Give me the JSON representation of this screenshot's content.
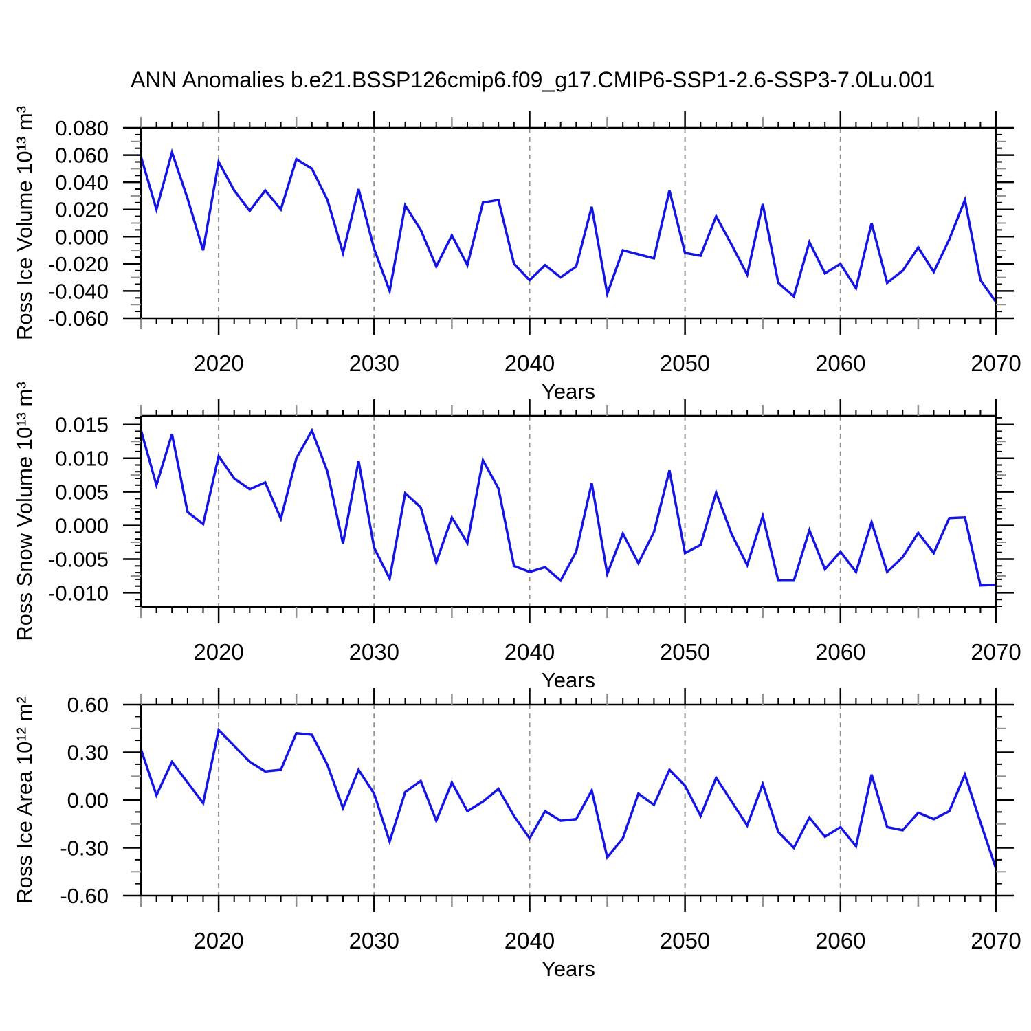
{
  "title": "ANN Anomalies b.e21.BSSP126cmip6.f09_g17.CMIP6-SSP1-2.6-SSP3-7.0Lu.001",
  "colors": {
    "line": "#1414e6",
    "grid": "#909090",
    "axis": "#000000",
    "background": "#ffffff"
  },
  "chart_data": {
    "type": "line",
    "x_label": "Years",
    "x_start": 2015,
    "x_end": 2070,
    "x_step": 1,
    "x_tick_years": [
      2020,
      2030,
      2040,
      2050,
      2060,
      2070
    ],
    "x_tick_labels": [
      "2020",
      "2030",
      "2040",
      "2050",
      "2060",
      "2070"
    ],
    "grid_years": [
      2020,
      2030,
      2040,
      2050,
      2060
    ],
    "grid_style": "dashed",
    "legend": "none",
    "panels": [
      {
        "name": "ross-ice-volume",
        "ylabel": "Ross Ice Volume 10¹³ m³",
        "ylim": [
          -0.06,
          0.08
        ],
        "ytick_values": [
          0.08,
          0.06,
          0.04,
          0.02,
          0.0,
          -0.02,
          -0.04,
          -0.06
        ],
        "ytick_labels": [
          "0.080",
          "0.060",
          "0.040",
          "0.020",
          "0.000",
          "-0.020",
          "-0.040",
          "-0.060"
        ],
        "minor_step": 0.005,
        "medium_step": 0.01,
        "values": [
          0.059,
          0.02,
          0.062,
          0.028,
          -0.01,
          0.055,
          0.034,
          0.019,
          0.034,
          0.02,
          0.057,
          0.05,
          0.027,
          -0.012,
          0.035,
          -0.009,
          -0.04,
          0.023,
          0.005,
          -0.022,
          0.001,
          -0.021,
          0.025,
          0.027,
          -0.02,
          -0.032,
          -0.021,
          -0.03,
          -0.022,
          0.022,
          -0.042,
          -0.01,
          -0.013,
          -0.016,
          0.034,
          -0.012,
          -0.014,
          0.015,
          -0.006,
          -0.028,
          0.024,
          -0.034,
          -0.044,
          -0.004,
          -0.027,
          -0.02,
          -0.038,
          0.01,
          -0.034,
          -0.025,
          -0.008,
          -0.026,
          -0.002,
          0.027,
          -0.032,
          -0.048
        ]
      },
      {
        "name": "ross-snow-volume",
        "ylabel": "Ross Snow Volume 10¹³ m³",
        "ylim": [
          -0.0121,
          0.0163
        ],
        "ytick_values": [
          0.015,
          0.01,
          0.005,
          0.0,
          -0.005,
          -0.01
        ],
        "ytick_labels": [
          "0.015",
          "0.010",
          "0.005",
          "0.000",
          "-0.005",
          "-0.010"
        ],
        "minor_step": 0.001,
        "medium_step": 0.0025,
        "values": [
          0.0142,
          0.006,
          0.0136,
          0.002,
          0.0002,
          0.0103,
          0.007,
          0.0054,
          0.0064,
          0.001,
          0.01,
          0.0141,
          0.008,
          -0.0027,
          0.0096,
          -0.0033,
          -0.0079,
          0.0048,
          0.0027,
          -0.0055,
          0.0012,
          -0.0026,
          0.0097,
          0.0055,
          -0.006,
          -0.0069,
          -0.0062,
          -0.0082,
          -0.0039,
          0.0063,
          -0.0072,
          -0.0012,
          -0.0056,
          -0.001,
          0.0082,
          -0.0041,
          -0.0029,
          0.0049,
          -0.0013,
          -0.0059,
          0.0014,
          -0.0082,
          -0.0082,
          -0.0007,
          -0.0065,
          -0.0039,
          -0.0069,
          0.0005,
          -0.0069,
          -0.0047,
          -0.0011,
          -0.0041,
          0.0011,
          0.0012,
          -0.0089,
          -0.0088
        ]
      },
      {
        "name": "ross-ice-area",
        "ylabel": "Ross Ice Area 10¹² m²",
        "ylim": [
          -0.6,
          0.6
        ],
        "ytick_values": [
          0.6,
          0.3,
          0.0,
          -0.3,
          -0.6
        ],
        "ytick_labels": [
          "0.60",
          "0.30",
          "0.00",
          "-0.30",
          "-0.60"
        ],
        "minor_step": 0.075,
        "medium_step": 0.15,
        "values": [
          0.32,
          0.03,
          0.24,
          0.11,
          -0.02,
          0.44,
          0.34,
          0.24,
          0.18,
          0.19,
          0.42,
          0.41,
          0.22,
          -0.05,
          0.19,
          0.04,
          -0.26,
          0.05,
          0.12,
          -0.13,
          0.11,
          -0.07,
          -0.01,
          0.07,
          -0.1,
          -0.24,
          -0.07,
          -0.13,
          -0.12,
          0.06,
          -0.36,
          -0.24,
          0.04,
          -0.03,
          0.19,
          0.09,
          -0.1,
          0.14,
          -0.01,
          -0.16,
          0.1,
          -0.2,
          -0.3,
          -0.11,
          -0.23,
          -0.17,
          -0.29,
          0.16,
          -0.17,
          -0.19,
          -0.08,
          -0.12,
          -0.07,
          0.16,
          -0.14,
          -0.43
        ]
      }
    ]
  }
}
